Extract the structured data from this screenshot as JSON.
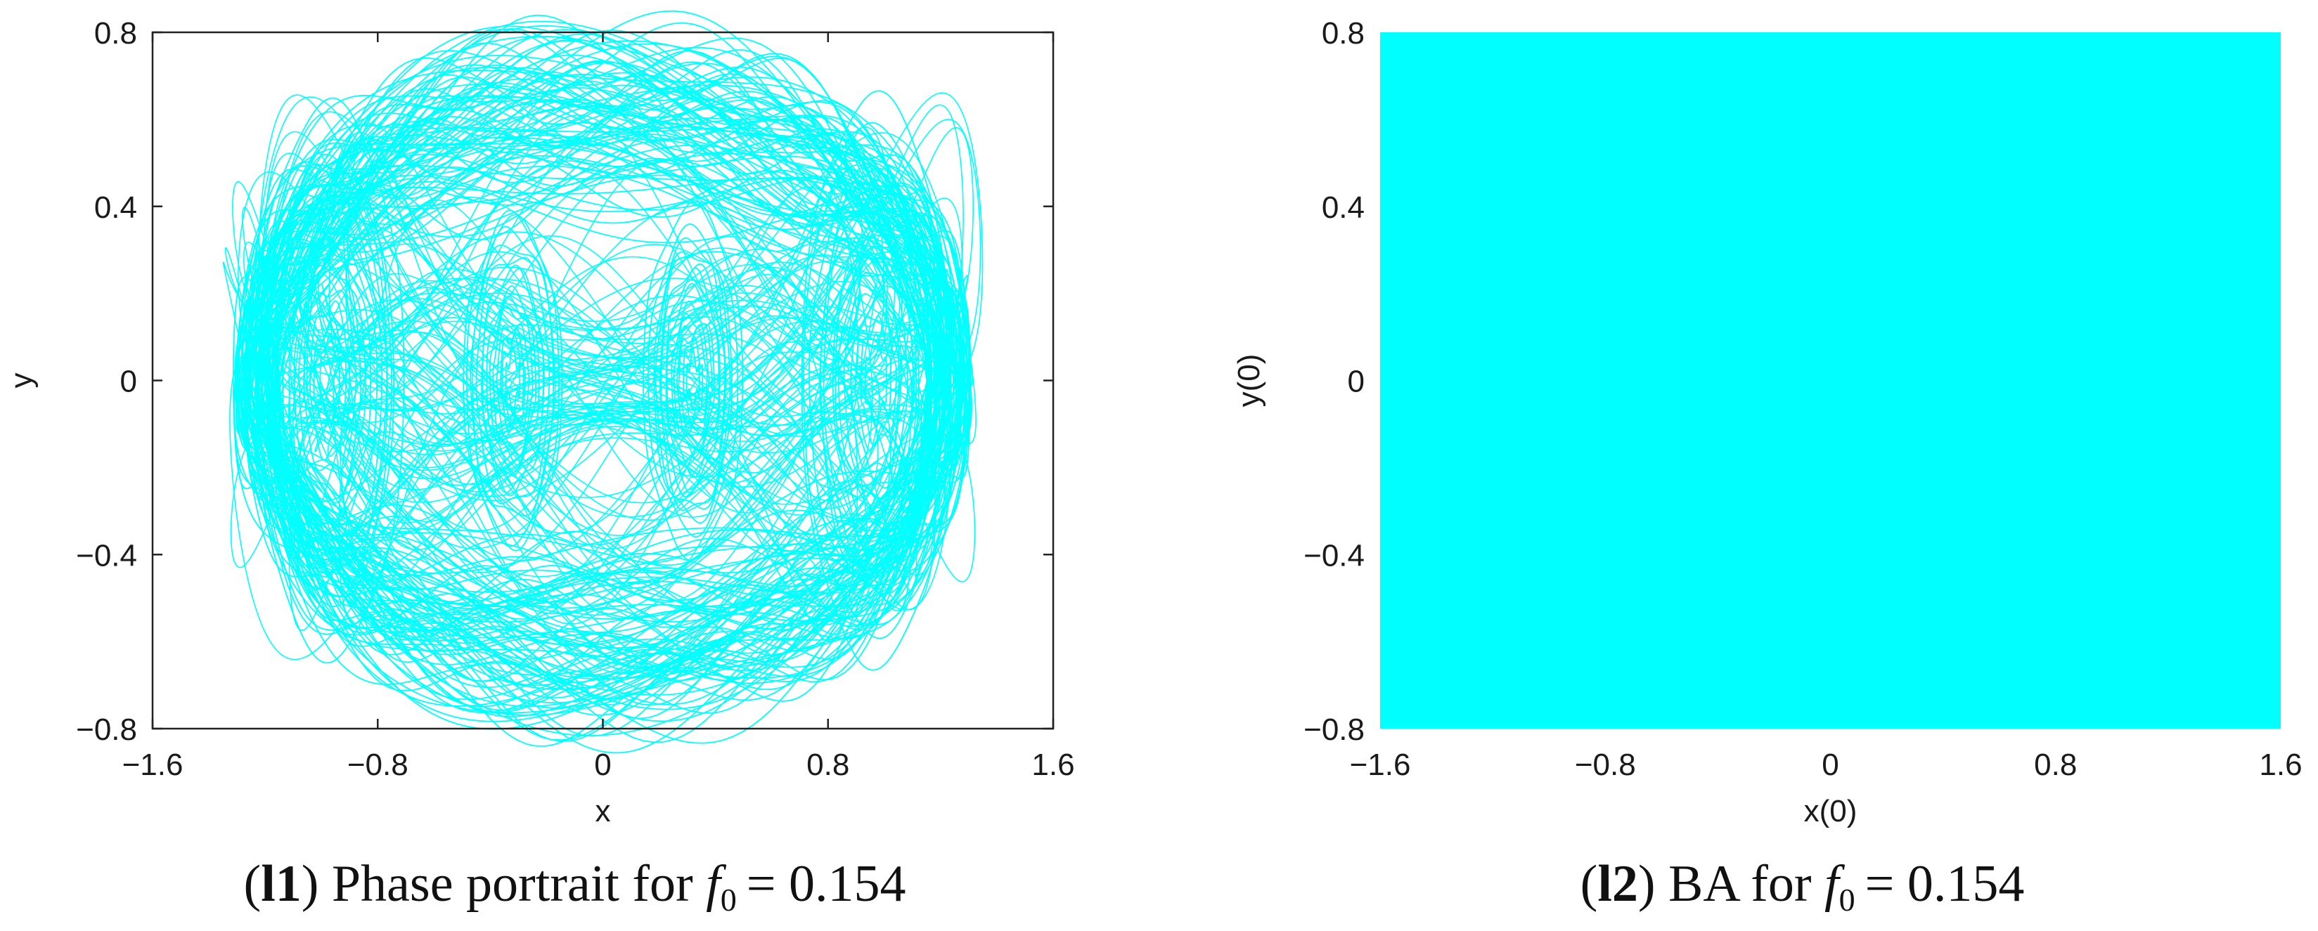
{
  "chart_data": [
    {
      "id": "l1",
      "type": "line",
      "title": "",
      "xlabel": "x",
      "ylabel": "y",
      "xlim": [
        -1.6,
        1.6
      ],
      "ylim": [
        -0.8,
        0.8
      ],
      "xticks": [
        -1.6,
        -0.8,
        0,
        0.8,
        1.6
      ],
      "yticks": [
        -0.8,
        -0.4,
        0,
        0.4,
        0.8
      ],
      "xtick_labels": [
        "−1.6",
        "−0.8",
        "0",
        "0.8",
        "1.6"
      ],
      "ytick_labels": [
        "−0.8",
        "−0.4",
        "0",
        "0.4",
        "0.8"
      ],
      "series": [
        {
          "description_only": false,
          "color": "#00ffff",
          "x_range": [
            -1.37,
            1.37
          ],
          "y_range": [
            -0.77,
            0.77
          ],
          "centers": [
            [
              -0.97,
              0.0
            ],
            [
              -0.32,
              0.0
            ],
            [
              0.32,
              0.0
            ],
            [
              0.97,
              0.0
            ]
          ]
        }
      ],
      "caption": {
        "label": "l1",
        "text": "Phase portrait for",
        "var": "f",
        "sub": "0",
        "eq": "= 0.154"
      }
    },
    {
      "id": "l2",
      "type": "heatmap",
      "title": "",
      "xlabel": "x(0)",
      "ylabel": "y(0)",
      "xlim": [
        -1.6,
        1.6
      ],
      "ylim": [
        -0.8,
        0.8
      ],
      "xticks": [
        -1.6,
        -0.8,
        0,
        0.8,
        1.6
      ],
      "yticks": [
        -0.8,
        -0.4,
        0,
        0.4,
        0.8
      ],
      "xtick_labels": [
        "−1.6",
        "−0.8",
        "0",
        "0.8",
        "1.6"
      ],
      "ytick_labels": [
        "−0.8",
        "−0.4",
        "0",
        "0.4",
        "0.8"
      ],
      "fill_color": "#00ffff",
      "caption": {
        "label": "l2",
        "text": "BA for",
        "var": "f",
        "sub": "0",
        "eq": "= 0.154"
      }
    }
  ]
}
